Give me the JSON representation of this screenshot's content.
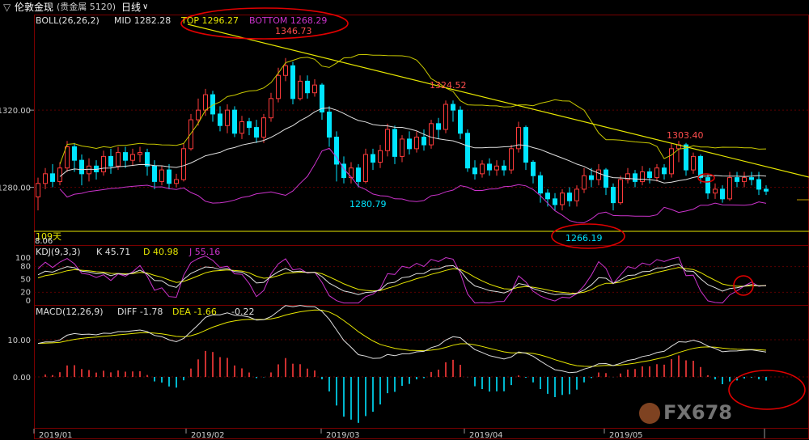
{
  "header": {
    "instrument": "伦敦金现",
    "market": "(贵金属 5120)",
    "period": "日线",
    "period_arrow": "∨"
  },
  "boll": {
    "label": "BOLL(26,26,2)",
    "mid": "MID 1282.28",
    "top": "TOP 1296.27",
    "bottom": "BOTTOM 1268.29"
  },
  "kdj": {
    "label": "KDJ(9,3,3)",
    "k": "K 45.71",
    "d": "D 40.98",
    "j": "J 55.16"
  },
  "macd": {
    "label": "MACD(12,26,9)",
    "diff": "DIFF -1.78",
    "dea": "DEA -1.66",
    "hist": "-0.22"
  },
  "annotations": {
    "high1": "1346.73",
    "high2": "1324.52",
    "high3": "1303.40",
    "low1": "1280.79",
    "low2": "1266.19",
    "days": "109天",
    "left_val": "8.06"
  },
  "watermark": "FX678",
  "colors": {
    "up": "#ff3b3b",
    "down": "#00e5ff",
    "trend": "#e6e600",
    "mid": "#e0e0e0",
    "bottom": "#cc33cc",
    "top": "#c8c800",
    "annot": "#e00000"
  },
  "chart_data": {
    "type": "candlestick",
    "y_axis_labels": [
      "1320.00",
      "1280.00"
    ],
    "kdj_axis_labels": [
      "100",
      "80",
      "50",
      "20",
      "0"
    ],
    "macd_axis_labels": [
      "10.00",
      "0.00"
    ],
    "x_axis_labels": [
      "2019/01",
      "2019/02",
      "2019/03",
      "2019/04",
      "2019/05"
    ],
    "ylim": [
      1258,
      1362
    ],
    "candles": [
      [
        1275,
        1282,
        1268,
        1285
      ],
      [
        1282,
        1287,
        1279,
        1290
      ],
      [
        1287,
        1283,
        1280,
        1292
      ],
      [
        1283,
        1290,
        1281,
        1293
      ],
      [
        1290,
        1301,
        1288,
        1304
      ],
      [
        1301,
        1294,
        1288,
        1303
      ],
      [
        1294,
        1287,
        1281,
        1297
      ],
      [
        1287,
        1291,
        1283,
        1295
      ],
      [
        1291,
        1288,
        1284,
        1294
      ],
      [
        1288,
        1296,
        1286,
        1299
      ],
      [
        1296,
        1291,
        1287,
        1300
      ],
      [
        1291,
        1298,
        1289,
        1301
      ],
      [
        1298,
        1294,
        1290,
        1301
      ],
      [
        1294,
        1297,
        1291,
        1300
      ],
      [
        1297,
        1298,
        1293,
        1301
      ],
      [
        1298,
        1291,
        1286,
        1300
      ],
      [
        1291,
        1283,
        1279,
        1294
      ],
      [
        1283,
        1289,
        1281,
        1291
      ],
      [
        1289,
        1282,
        1279,
        1292
      ],
      [
        1282,
        1284,
        1280,
        1287
      ],
      [
        1284,
        1300,
        1283,
        1303
      ],
      [
        1300,
        1315,
        1299,
        1318
      ],
      [
        1315,
        1320,
        1312,
        1326
      ],
      [
        1320,
        1328,
        1317,
        1331
      ],
      [
        1328,
        1318,
        1314,
        1330
      ],
      [
        1318,
        1312,
        1309,
        1322
      ],
      [
        1312,
        1320,
        1308,
        1323
      ],
      [
        1320,
        1308,
        1306,
        1322
      ],
      [
        1308,
        1314,
        1305,
        1317
      ],
      [
        1314,
        1311,
        1307,
        1316
      ],
      [
        1311,
        1306,
        1303,
        1315
      ],
      [
        1306,
        1316,
        1303,
        1318
      ],
      [
        1316,
        1326,
        1314,
        1329
      ],
      [
        1326,
        1338,
        1324,
        1342
      ],
      [
        1338,
        1343,
        1335,
        1347
      ],
      [
        1343,
        1326,
        1323,
        1345
      ],
      [
        1326,
        1335,
        1325,
        1338
      ],
      [
        1335,
        1329,
        1326,
        1338
      ],
      [
        1329,
        1333,
        1327,
        1336
      ],
      [
        1333,
        1319,
        1315,
        1334
      ],
      [
        1319,
        1306,
        1301,
        1322
      ],
      [
        1306,
        1292,
        1283,
        1309
      ],
      [
        1292,
        1285,
        1282,
        1296
      ],
      [
        1285,
        1290,
        1282,
        1293
      ],
      [
        1290,
        1283,
        1280,
        1292
      ],
      [
        1283,
        1297,
        1282,
        1300
      ],
      [
        1297,
        1293,
        1289,
        1300
      ],
      [
        1293,
        1299,
        1290,
        1302
      ],
      [
        1299,
        1310,
        1296,
        1313
      ],
      [
        1310,
        1296,
        1292,
        1312
      ],
      [
        1296,
        1305,
        1293,
        1307
      ],
      [
        1305,
        1300,
        1297,
        1309
      ],
      [
        1300,
        1306,
        1298,
        1309
      ],
      [
        1306,
        1302,
        1299,
        1310
      ],
      [
        1302,
        1313,
        1300,
        1315
      ],
      [
        1313,
        1310,
        1305,
        1316
      ],
      [
        1310,
        1323,
        1308,
        1325
      ],
      [
        1323,
        1320,
        1314,
        1325
      ],
      [
        1320,
        1308,
        1305,
        1322
      ],
      [
        1308,
        1290,
        1288,
        1310
      ],
      [
        1290,
        1287,
        1284,
        1294
      ],
      [
        1287,
        1292,
        1285,
        1294
      ],
      [
        1292,
        1289,
        1286,
        1295
      ],
      [
        1289,
        1291,
        1286,
        1294
      ],
      [
        1291,
        1289,
        1286,
        1294
      ],
      [
        1289,
        1300,
        1287,
        1302
      ],
      [
        1300,
        1311,
        1298,
        1314
      ],
      [
        1311,
        1293,
        1289,
        1312
      ],
      [
        1293,
        1286,
        1282,
        1294
      ],
      [
        1286,
        1277,
        1272,
        1288
      ],
      [
        1277,
        1274,
        1270,
        1279
      ],
      [
        1274,
        1271,
        1268,
        1277
      ],
      [
        1271,
        1277,
        1268,
        1279
      ],
      [
        1277,
        1273,
        1270,
        1280
      ],
      [
        1273,
        1279,
        1270,
        1281
      ],
      [
        1279,
        1286,
        1277,
        1290
      ],
      [
        1286,
        1284,
        1280,
        1290
      ],
      [
        1284,
        1289,
        1281,
        1292
      ],
      [
        1289,
        1280,
        1276,
        1290
      ],
      [
        1280,
        1272,
        1268,
        1282
      ],
      [
        1272,
        1284,
        1271,
        1286
      ],
      [
        1284,
        1287,
        1282,
        1290
      ],
      [
        1287,
        1283,
        1280,
        1289
      ],
      [
        1283,
        1288,
        1281,
        1291
      ],
      [
        1288,
        1285,
        1282,
        1290
      ],
      [
        1285,
        1290,
        1283,
        1292
      ],
      [
        1290,
        1287,
        1284,
        1292
      ],
      [
        1287,
        1300,
        1285,
        1303
      ],
      [
        1300,
        1302,
        1293,
        1304
      ],
      [
        1302,
        1289,
        1286,
        1303
      ],
      [
        1289,
        1296,
        1287,
        1298
      ],
      [
        1296,
        1285,
        1282,
        1297
      ],
      [
        1285,
        1277,
        1274,
        1287
      ],
      [
        1277,
        1279,
        1274,
        1282
      ],
      [
        1279,
        1274,
        1272,
        1281
      ],
      [
        1274,
        1285,
        1273,
        1288
      ],
      [
        1285,
        1283,
        1280,
        1288
      ],
      [
        1283,
        1285,
        1280,
        1288
      ],
      [
        1285,
        1284,
        1281,
        1288
      ],
      [
        1284,
        1279,
        1276,
        1288
      ],
      [
        1279,
        1278,
        1276,
        1281
      ]
    ]
  }
}
